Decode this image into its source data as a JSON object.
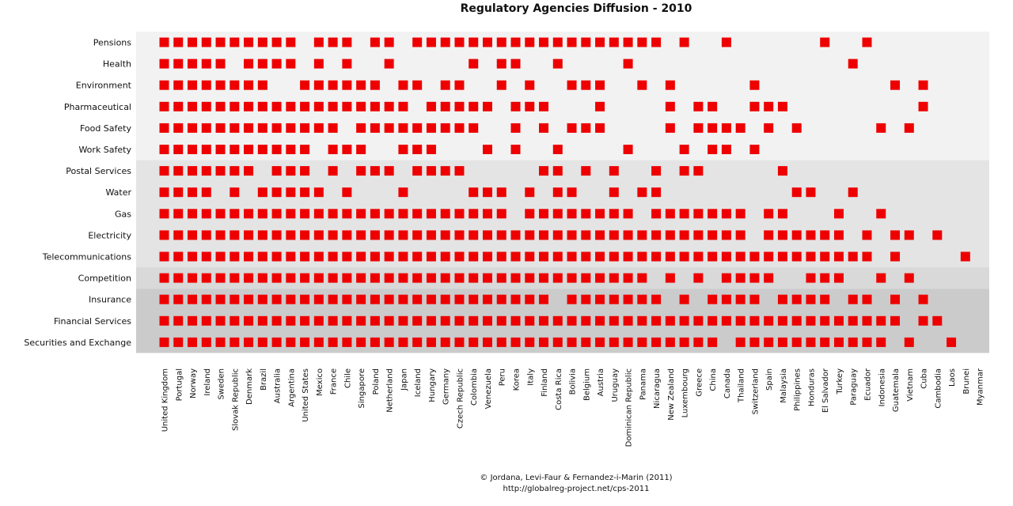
{
  "chart_data": {
    "type": "heatmap",
    "title": "Regulatory Agencies Diffusion - 2010",
    "rows": [
      "Pensions",
      "Health",
      "Environment",
      "Pharmaceutical",
      "Food Safety",
      "Work Safety",
      "Postal Services",
      "Water",
      "Gas",
      "Electricity",
      "Telecommunications",
      "Competition",
      "Insurance",
      "Financial Services",
      "Securities and Exchange"
    ],
    "columns": [
      "United Kingdom",
      "Portugal",
      "Norway",
      "Ireland",
      "Sweden",
      "Slovak Republic",
      "Denmark",
      "Brazil",
      "Australia",
      "Argentina",
      "United States",
      "Mexico",
      "France",
      "Chile",
      "Singapore",
      "Poland",
      "Netherland",
      "Japan",
      "Iceland",
      "Hungary",
      "Germany",
      "Czech Republic",
      "Colombia",
      "Venezuela",
      "Peru",
      "Korea",
      "Italy",
      "Finland",
      "Costa Rica",
      "Bolivia",
      "Belgium",
      "Austria",
      "Uruguay",
      "Dominican Republic",
      "Panama",
      "Nicaragua",
      "New Zealand",
      "Luxembourg",
      "Greece",
      "China",
      "Canada",
      "Thailand",
      "Switzerland",
      "Spain",
      "Malaysia",
      "Philippines",
      "Honduras",
      "El Salvador",
      "Turkey",
      "Paraguay",
      "Ecuador",
      "Indonesia",
      "Guatemala",
      "Vietnam",
      "Cuba",
      "Cambodia",
      "Laos",
      "Brunei",
      "Myanmar"
    ],
    "values": [
      [
        1,
        1,
        1,
        1,
        1,
        1,
        1,
        1,
        1,
        1,
        0,
        1,
        1,
        1,
        0,
        1,
        1,
        0,
        1,
        1,
        1,
        1,
        1,
        1,
        1,
        1,
        1,
        1,
        1,
        1,
        1,
        1,
        1,
        1,
        1,
        1,
        0,
        1,
        0,
        0,
        1,
        0,
        0,
        0,
        0,
        0,
        0,
        1,
        0,
        0,
        1,
        0,
        0,
        0,
        0,
        0,
        0,
        0,
        0
      ],
      [
        1,
        1,
        1,
        1,
        1,
        0,
        1,
        1,
        1,
        1,
        0,
        1,
        0,
        1,
        0,
        0,
        1,
        0,
        0,
        0,
        0,
        0,
        1,
        0,
        1,
        1,
        0,
        0,
        1,
        0,
        0,
        0,
        0,
        1,
        0,
        0,
        0,
        0,
        0,
        0,
        0,
        0,
        0,
        0,
        0,
        0,
        0,
        0,
        0,
        1,
        0,
        0,
        0,
        0,
        0,
        0,
        0,
        0,
        0
      ],
      [
        1,
        1,
        1,
        1,
        1,
        1,
        1,
        1,
        0,
        0,
        1,
        1,
        1,
        1,
        1,
        1,
        0,
        1,
        1,
        0,
        1,
        1,
        0,
        0,
        1,
        0,
        1,
        0,
        0,
        1,
        1,
        1,
        0,
        0,
        1,
        0,
        1,
        0,
        0,
        0,
        0,
        0,
        1,
        0,
        0,
        0,
        0,
        0,
        0,
        0,
        0,
        0,
        1,
        0,
        1,
        0,
        0,
        0,
        0
      ],
      [
        1,
        1,
        1,
        1,
        1,
        1,
        1,
        1,
        1,
        1,
        1,
        1,
        1,
        1,
        1,
        1,
        1,
        1,
        0,
        1,
        1,
        1,
        1,
        1,
        0,
        1,
        1,
        1,
        0,
        0,
        0,
        1,
        0,
        0,
        0,
        0,
        1,
        0,
        1,
        1,
        0,
        0,
        1,
        1,
        1,
        0,
        0,
        0,
        0,
        0,
        0,
        0,
        0,
        0,
        1,
        0,
        0,
        0,
        0
      ],
      [
        1,
        1,
        1,
        1,
        1,
        1,
        1,
        1,
        1,
        1,
        1,
        1,
        1,
        0,
        1,
        1,
        1,
        1,
        1,
        1,
        1,
        1,
        1,
        0,
        0,
        1,
        0,
        1,
        0,
        1,
        1,
        1,
        0,
        0,
        0,
        0,
        1,
        0,
        1,
        1,
        1,
        1,
        0,
        1,
        0,
        1,
        0,
        0,
        0,
        0,
        0,
        1,
        0,
        1,
        0,
        0,
        0,
        0,
        0
      ],
      [
        1,
        1,
        1,
        1,
        1,
        1,
        1,
        1,
        1,
        1,
        1,
        0,
        1,
        1,
        1,
        0,
        0,
        1,
        1,
        1,
        0,
        0,
        0,
        1,
        0,
        1,
        0,
        0,
        1,
        0,
        0,
        0,
        0,
        1,
        0,
        0,
        0,
        1,
        0,
        1,
        1,
        0,
        1,
        0,
        0,
        0,
        0,
        0,
        0,
        0,
        0,
        0,
        0,
        0,
        0,
        0,
        0,
        0,
        0
      ],
      [
        1,
        1,
        1,
        1,
        1,
        1,
        1,
        0,
        1,
        1,
        1,
        0,
        1,
        0,
        1,
        1,
        1,
        0,
        1,
        1,
        1,
        1,
        0,
        0,
        0,
        0,
        0,
        1,
        1,
        0,
        1,
        0,
        1,
        0,
        0,
        1,
        0,
        1,
        1,
        0,
        0,
        0,
        0,
        0,
        1,
        0,
        0,
        0,
        0,
        0,
        0,
        0,
        0,
        0,
        0,
        0,
        0,
        0,
        0
      ],
      [
        1,
        1,
        1,
        1,
        0,
        1,
        0,
        1,
        1,
        1,
        1,
        1,
        0,
        1,
        0,
        0,
        0,
        1,
        0,
        0,
        0,
        0,
        1,
        1,
        1,
        0,
        1,
        0,
        1,
        1,
        0,
        0,
        1,
        0,
        1,
        1,
        0,
        0,
        0,
        0,
        0,
        0,
        0,
        0,
        0,
        1,
        1,
        0,
        0,
        1,
        0,
        0,
        0,
        0,
        0,
        0,
        0,
        0,
        0
      ],
      [
        1,
        1,
        1,
        1,
        1,
        1,
        1,
        1,
        1,
        1,
        1,
        1,
        1,
        1,
        1,
        1,
        1,
        1,
        1,
        1,
        1,
        1,
        1,
        1,
        1,
        0,
        1,
        1,
        1,
        1,
        1,
        1,
        1,
        1,
        0,
        1,
        1,
        1,
        1,
        1,
        1,
        1,
        0,
        1,
        1,
        0,
        0,
        0,
        1,
        0,
        0,
        1,
        0,
        0,
        0,
        0,
        0,
        0,
        0
      ],
      [
        1,
        1,
        1,
        1,
        1,
        1,
        1,
        1,
        1,
        1,
        1,
        1,
        1,
        1,
        1,
        1,
        1,
        1,
        1,
        1,
        1,
        1,
        1,
        1,
        1,
        1,
        1,
        1,
        1,
        1,
        1,
        1,
        1,
        1,
        1,
        1,
        1,
        1,
        1,
        1,
        1,
        1,
        0,
        1,
        1,
        1,
        1,
        1,
        1,
        0,
        1,
        0,
        1,
        1,
        0,
        1,
        0,
        0,
        0
      ],
      [
        1,
        1,
        1,
        1,
        1,
        1,
        1,
        1,
        1,
        1,
        1,
        1,
        1,
        1,
        1,
        1,
        1,
        1,
        1,
        1,
        1,
        1,
        1,
        1,
        1,
        1,
        1,
        1,
        1,
        1,
        1,
        1,
        1,
        1,
        1,
        1,
        1,
        1,
        1,
        1,
        1,
        1,
        1,
        1,
        1,
        1,
        1,
        1,
        1,
        1,
        1,
        0,
        1,
        0,
        0,
        0,
        0,
        1,
        0
      ],
      [
        1,
        1,
        1,
        1,
        1,
        1,
        1,
        1,
        1,
        1,
        1,
        1,
        1,
        1,
        1,
        1,
        1,
        1,
        1,
        1,
        1,
        1,
        1,
        1,
        1,
        1,
        1,
        1,
        1,
        1,
        1,
        1,
        1,
        1,
        1,
        0,
        1,
        0,
        1,
        0,
        1,
        1,
        1,
        1,
        0,
        0,
        1,
        1,
        1,
        0,
        0,
        1,
        0,
        1,
        0,
        0,
        0,
        0,
        0
      ],
      [
        1,
        1,
        1,
        1,
        1,
        1,
        1,
        1,
        1,
        1,
        1,
        1,
        1,
        1,
        1,
        1,
        1,
        1,
        1,
        1,
        1,
        1,
        1,
        1,
        1,
        1,
        1,
        1,
        0,
        1,
        1,
        1,
        1,
        1,
        1,
        1,
        0,
        1,
        0,
        1,
        1,
        1,
        1,
        0,
        1,
        1,
        1,
        1,
        0,
        1,
        1,
        0,
        1,
        0,
        1,
        0,
        0,
        0,
        0
      ],
      [
        1,
        1,
        1,
        1,
        1,
        1,
        1,
        1,
        1,
        1,
        1,
        1,
        1,
        1,
        1,
        1,
        1,
        1,
        1,
        1,
        1,
        1,
        1,
        1,
        1,
        1,
        1,
        1,
        1,
        1,
        1,
        1,
        1,
        1,
        1,
        1,
        1,
        1,
        1,
        1,
        1,
        1,
        1,
        1,
        1,
        1,
        1,
        1,
        1,
        1,
        1,
        1,
        1,
        0,
        1,
        1,
        0,
        0,
        0
      ],
      [
        1,
        1,
        1,
        1,
        1,
        1,
        1,
        1,
        1,
        1,
        1,
        1,
        1,
        1,
        1,
        1,
        1,
        1,
        1,
        1,
        1,
        1,
        1,
        1,
        1,
        1,
        1,
        1,
        1,
        1,
        1,
        1,
        1,
        1,
        1,
        1,
        1,
        1,
        1,
        1,
        0,
        1,
        1,
        1,
        1,
        1,
        1,
        1,
        1,
        1,
        1,
        1,
        0,
        1,
        0,
        0,
        1,
        0,
        0
      ]
    ],
    "marker_color": "#ee0000",
    "band_colors": [
      "#f2f2f2",
      "#e4e4e4",
      "#d9d9d9",
      "#cbcbcb"
    ],
    "bands": [
      [
        0,
        5
      ],
      [
        6,
        10
      ],
      [
        11,
        11
      ],
      [
        12,
        14
      ]
    ],
    "grid": false,
    "legend": "none"
  },
  "credit": {
    "line1": "© Jordana, Levi-Faur & Fernandez-i-Marin (2011)",
    "line2": "http://globalreg-project.net/cps-2011"
  }
}
